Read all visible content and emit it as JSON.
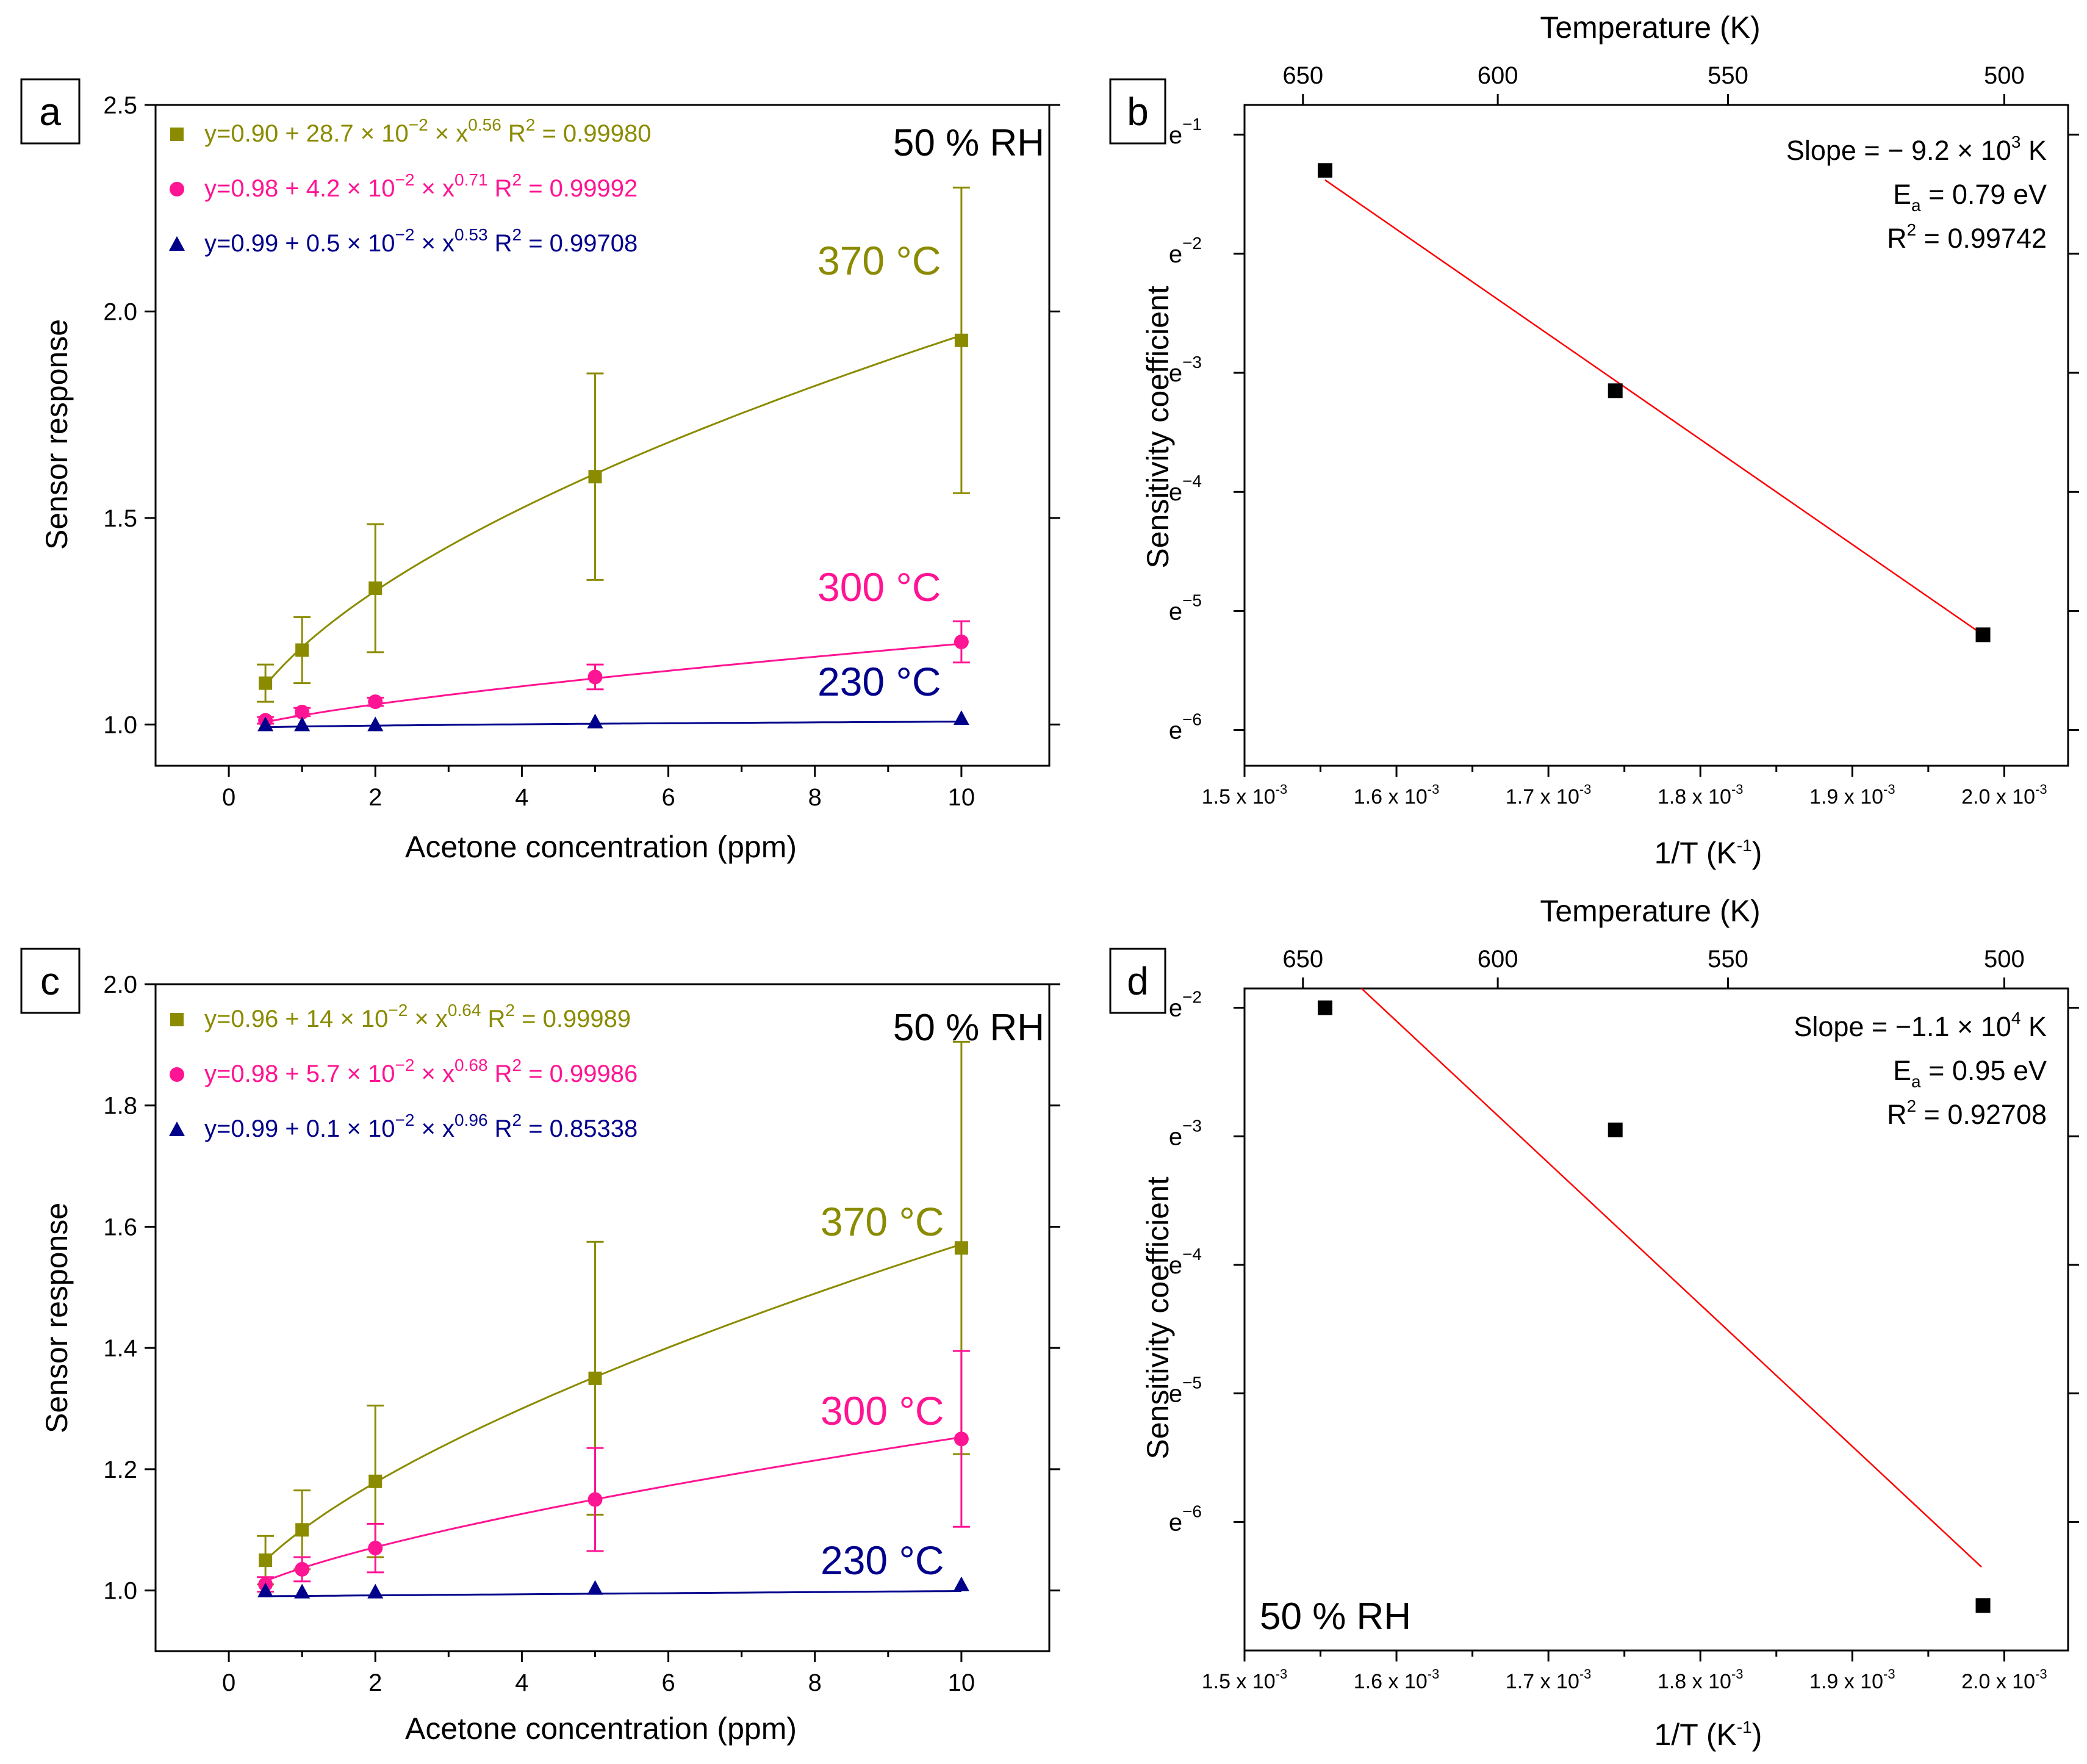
{
  "colors": {
    "s370": "#8b8b00",
    "s300": "#ff1493",
    "s230": "#00008b",
    "fit": "#ff0000",
    "point": "#000000"
  },
  "panels": {
    "a": {
      "letter": "a",
      "rh_label": "50 % RH",
      "xlabel": "Acetone concentration (ppm)",
      "ylabel": "Sensor response",
      "x_ticks": [
        "0",
        "2",
        "4",
        "6",
        "8",
        "10"
      ],
      "y_ticks": [
        "1.0",
        "1.5",
        "2.0",
        "2.5"
      ],
      "temp_labels": [
        "370 °C",
        "300 °C",
        "230 °C"
      ],
      "legend": [
        {
          "base": "y=0.90 + 28.7 × 10",
          "exp1": "−2",
          "mid": " × x",
          "exp2": "0.56",
          "r2": " R",
          "r2exp": "2",
          "r2val": " = 0.99980"
        },
        {
          "base": "y=0.98 + 4.2 × 10",
          "exp1": "−2",
          "mid": " × x",
          "exp2": "0.71",
          "r2": " R",
          "r2exp": "2",
          "r2val": " = 0.99992"
        },
        {
          "base": "y=0.99 + 0.5 × 10",
          "exp1": "−2",
          "mid": " × x",
          "exp2": "0.53",
          "r2": " R",
          "r2exp": "2",
          "r2val": " = 0.99708"
        }
      ]
    },
    "b": {
      "letter": "b",
      "top_label": "Temperature (K)",
      "top_ticks": [
        "650",
        "600",
        "550",
        "500"
      ],
      "xlabel": "1/T (K",
      "xlabel_exp": "-1",
      "xlabel_end": ")",
      "ylabel": "Sensitivity coefficient",
      "x_ticks": [
        {
          "m": "1.5 x 10",
          "e": "-3"
        },
        {
          "m": "1.6 x 10",
          "e": "-3"
        },
        {
          "m": "1.7 x 10",
          "e": "-3"
        },
        {
          "m": "1.8 x 10",
          "e": "-3"
        },
        {
          "m": "1.9 x 10",
          "e": "-3"
        },
        {
          "m": "2.0 x 10",
          "e": "-3"
        }
      ],
      "y_ticks": [
        {
          "m": "e",
          "e": "−1"
        },
        {
          "m": "e",
          "e": "−2"
        },
        {
          "m": "e",
          "e": "−3"
        },
        {
          "m": "e",
          "e": "−4"
        },
        {
          "m": "e",
          "e": "−5"
        },
        {
          "m": "e",
          "e": "−6"
        }
      ],
      "fit_lines": [
        {
          "t": "Slope = − 9.2 × 10",
          "e": "3",
          "u": " K"
        },
        {
          "t": "E",
          "sub": "a",
          "u": " = 0.79 eV"
        },
        {
          "t": "R",
          "e": "2",
          "u": " = 0.99742"
        }
      ]
    },
    "c": {
      "letter": "c",
      "rh_label": "50 % RH",
      "xlabel": "Acetone concentration (ppm)",
      "ylabel": "Sensor response",
      "x_ticks": [
        "0",
        "2",
        "4",
        "6",
        "8",
        "10"
      ],
      "y_ticks": [
        "1.0",
        "1.2",
        "1.4",
        "1.6",
        "1.8",
        "2.0"
      ],
      "temp_labels": [
        "370 °C",
        "300 °C",
        "230 °C"
      ],
      "legend": [
        {
          "base": "y=0.96 + 14 × 10",
          "exp1": "−2",
          "mid": " × x",
          "exp2": "0.64",
          "r2": " R",
          "r2exp": "2",
          "r2val": " = 0.99989"
        },
        {
          "base": "y=0.98 + 5.7 × 10",
          "exp1": "−2",
          "mid": " × x",
          "exp2": "0.68",
          "r2": " R",
          "r2exp": "2",
          "r2val": " = 0.99986"
        },
        {
          "base": "y=0.99 + 0.1 × 10",
          "exp1": "−2",
          "mid": " × x",
          "exp2": "0.96",
          "r2": " R",
          "r2exp": "2",
          "r2val": " = 0.85338"
        }
      ]
    },
    "d": {
      "letter": "d",
      "rh_label": "50 % RH",
      "top_label": "Temperature (K)",
      "top_ticks": [
        "650",
        "600",
        "550",
        "500"
      ],
      "xlabel": "1/T (K",
      "xlabel_exp": "-1",
      "xlabel_end": ")",
      "ylabel": "Sensitivity coefficient",
      "x_ticks": [
        {
          "m": "1.5 x 10",
          "e": "-3"
        },
        {
          "m": "1.6 x 10",
          "e": "-3"
        },
        {
          "m": "1.7 x 10",
          "e": "-3"
        },
        {
          "m": "1.8 x 10",
          "e": "-3"
        },
        {
          "m": "1.9 x 10",
          "e": "-3"
        },
        {
          "m": "2.0 x 10",
          "e": "-3"
        }
      ],
      "y_ticks": [
        {
          "m": "e",
          "e": "−2"
        },
        {
          "m": "e",
          "e": "−3"
        },
        {
          "m": "e",
          "e": "−4"
        },
        {
          "m": "e",
          "e": "−5"
        },
        {
          "m": "e",
          "e": "−6"
        }
      ],
      "fit_lines": [
        {
          "t": "Slope = −1.1 × 10",
          "e": "4",
          "u": " K"
        },
        {
          "t": "E",
          "sub": "a",
          "u": " = 0.95 eV"
        },
        {
          "t": "R",
          "e": "2",
          "u": " = 0.92708"
        }
      ]
    }
  },
  "chart_data": [
    {
      "panel": "a",
      "type": "line",
      "xlabel": "Acetone concentration (ppm)",
      "ylabel": "Sensor response",
      "xlim": [
        -1.0,
        11.2
      ],
      "ylim": [
        0.9,
        2.5
      ],
      "series": [
        {
          "name": "370 °C",
          "marker": "square",
          "x": [
            0.5,
            1,
            2,
            5,
            10
          ],
          "y": [
            1.1,
            1.18,
            1.33,
            1.6,
            1.93
          ],
          "err": [
            0.045,
            0.08,
            0.155,
            0.25,
            0.37
          ],
          "fit": {
            "a": 0.9,
            "b": 0.287,
            "c": 0.56
          }
        },
        {
          "name": "300 °C",
          "marker": "circle",
          "x": [
            0.5,
            1,
            2,
            5,
            10
          ],
          "y": [
            1.01,
            1.03,
            1.055,
            1.115,
            1.2
          ],
          "err": [
            0.008,
            0.01,
            0.01,
            0.03,
            0.05
          ],
          "fit": {
            "a": 0.98,
            "b": 0.042,
            "c": 0.71
          }
        },
        {
          "name": "230 °C",
          "marker": "triangle",
          "x": [
            0.5,
            1,
            2,
            5,
            10
          ],
          "y": [
            1.0,
            1.0,
            1.0,
            1.007,
            1.015
          ],
          "err": [
            0,
            0,
            0,
            0,
            0
          ],
          "fit": {
            "a": 0.99,
            "b": 0.005,
            "c": 0.53
          }
        }
      ]
    },
    {
      "panel": "b",
      "type": "scatter",
      "xlabel": "1/T (K^-1)",
      "ylabel": "Sensitivity coefficient",
      "yscale": "ln",
      "xlim": [
        0.0015,
        0.002042
      ],
      "ylim": [
        -6.3,
        -0.75
      ],
      "points": {
        "x": [
          0.001553,
          0.001744,
          0.001986
        ],
        "y": [
          -1.3,
          -3.15,
          -5.2
        ]
      },
      "fit_line": {
        "x": [
          0.001553,
          0.001986
        ],
        "y": [
          -1.38,
          -5.2
        ]
      },
      "slope": "-9.2e3 K",
      "Ea": "0.79 eV",
      "R2": "0.99742"
    },
    {
      "panel": "c",
      "type": "line",
      "xlabel": "Acetone concentration (ppm)",
      "ylabel": "Sensor response",
      "xlim": [
        -1.0,
        11.2
      ],
      "ylim": [
        0.9,
        2.0
      ],
      "series": [
        {
          "name": "370 °C",
          "marker": "square",
          "x": [
            0.5,
            1,
            2,
            5,
            10
          ],
          "y": [
            1.05,
            1.1,
            1.18,
            1.35,
            1.565
          ],
          "err": [
            0.04,
            0.065,
            0.125,
            0.225,
            0.34
          ],
          "fit": {
            "a": 0.96,
            "b": 0.14,
            "c": 0.64
          }
        },
        {
          "name": "300 °C",
          "marker": "circle",
          "x": [
            0.5,
            1,
            2,
            5,
            10
          ],
          "y": [
            1.01,
            1.035,
            1.07,
            1.15,
            1.25
          ],
          "err": [
            0.012,
            0.02,
            0.04,
            0.085,
            0.145
          ],
          "fit": {
            "a": 0.98,
            "b": 0.057,
            "c": 0.68
          }
        },
        {
          "name": "230 °C",
          "marker": "triangle",
          "x": [
            0.5,
            1,
            2,
            5,
            10
          ],
          "y": [
            1.0,
            0.998,
            0.998,
            1.004,
            1.01
          ],
          "err": [
            0,
            0,
            0,
            0,
            0
          ],
          "fit": {
            "a": 0.99,
            "b": 0.001,
            "c": 0.96
          }
        }
      ]
    },
    {
      "panel": "d",
      "type": "scatter",
      "xlabel": "1/T (K^-1)",
      "ylabel": "Sensitivity coefficient",
      "yscale": "ln",
      "xlim": [
        0.0015,
        0.002042
      ],
      "ylim": [
        -7.0,
        -1.85
      ],
      "points": {
        "x": [
          0.001553,
          0.001744,
          0.001986
        ],
        "y": [
          -2.0,
          -2.95,
          -6.65
        ]
      },
      "fit_line": {
        "x": [
          0.001577,
          0.001985
        ],
        "y": [
          -1.85,
          -6.35
        ]
      },
      "slope": "-1.1e4 K",
      "Ea": "0.95 eV",
      "R2": "0.92708"
    }
  ]
}
